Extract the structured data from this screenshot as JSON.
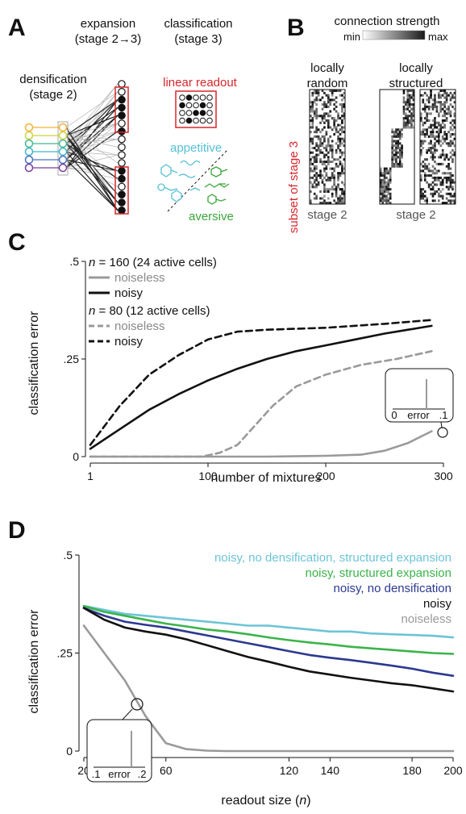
{
  "panels": {
    "a": {
      "label": "A",
      "expansion_title": "expansion",
      "expansion_sub": "(stage 2→3)",
      "classification_title": "classification",
      "classification_sub": "(stage 3)",
      "densification_title": "densification",
      "densification_sub": "(stage 2)",
      "linear_readout": "linear readout",
      "appetitive": "appetitive",
      "aversive": "aversive",
      "colors": {
        "red": "#d7262b",
        "appetitive": "#56c0d6",
        "aversive": "#3aa63a"
      }
    },
    "b": {
      "label": "B",
      "connection_strength": "connection strength",
      "min": "min",
      "max": "max",
      "locally_random_1": "locally",
      "locally_random_2": "random",
      "locally_structured_1": "locally",
      "locally_structured_2": "structured",
      "subset_label": "subset of stage 3",
      "stage2_left": "stage 2",
      "stage2_right": "stage 2"
    },
    "c": {
      "label": "C",
      "inset_error": "error",
      "inset_tick_lo": "0",
      "inset_tick_hi": ".1"
    },
    "d": {
      "label": "D",
      "inset_error": "error",
      "inset_tick_lo": ".1",
      "inset_tick_hi": ".2"
    }
  },
  "chart_data": [
    {
      "type": "line",
      "panel": "C",
      "xlabel": "number of mixtures",
      "ylabel": "classification error",
      "xlim": [
        0,
        300
      ],
      "ylim": [
        0,
        0.5
      ],
      "xticks": [
        "1",
        "100",
        "200",
        "300"
      ],
      "yticks": [
        ".5",
        ".25",
        "0"
      ],
      "legend": {
        "group1_title_var": "n",
        "group1_title_rest": " = 160 (24 active cells)",
        "group2_title_var": "n",
        "group2_title_rest": " = 80 (12 active cells)",
        "noiseless": "noiseless",
        "noisy": "noisy"
      },
      "series": [
        {
          "name": "noiseless",
          "group": "n = 160",
          "color": "#9a9a9a",
          "dash": false,
          "x": [
            0,
            50,
            100,
            150,
            200,
            230,
            250,
            270,
            290
          ],
          "y": [
            0,
            0,
            0,
            0,
            0.002,
            0.005,
            0.015,
            0.035,
            0.065
          ]
        },
        {
          "name": "noisy",
          "group": "n = 160",
          "color": "#111111",
          "dash": false,
          "x": [
            0,
            25,
            50,
            75,
            100,
            125,
            150,
            175,
            200,
            225,
            250,
            270,
            290
          ],
          "y": [
            0.02,
            0.07,
            0.12,
            0.16,
            0.195,
            0.225,
            0.25,
            0.27,
            0.285,
            0.3,
            0.315,
            0.325,
            0.335
          ]
        },
        {
          "name": "noiseless",
          "group": "n = 80",
          "color": "#9a9a9a",
          "dash": true,
          "x": [
            0,
            50,
            95,
            110,
            125,
            140,
            155,
            175,
            200,
            230,
            260,
            290
          ],
          "y": [
            0,
            0,
            0,
            0.01,
            0.03,
            0.08,
            0.13,
            0.18,
            0.21,
            0.235,
            0.25,
            0.27
          ]
        },
        {
          "name": "noisy",
          "group": "n = 80",
          "color": "#111111",
          "dash": true,
          "x": [
            0,
            25,
            50,
            75,
            100,
            125,
            150,
            200,
            250,
            290
          ],
          "y": [
            0.03,
            0.13,
            0.21,
            0.26,
            0.3,
            0.32,
            0.325,
            0.33,
            0.34,
            0.35
          ]
        }
      ]
    },
    {
      "type": "line",
      "panel": "D",
      "xlabel_pre": "readout size (",
      "xlabel_var": "n",
      "xlabel_post": ")",
      "ylabel": "classification error",
      "xlim": [
        20,
        200
      ],
      "ylim": [
        0,
        0.5
      ],
      "xticks": [
        "20",
        "60",
        "120",
        "140",
        "180",
        "200"
      ],
      "xtick_values": [
        20,
        60,
        120,
        140,
        180,
        200
      ],
      "yticks": [
        ".5",
        ".25",
        "0"
      ],
      "series": [
        {
          "name": "noisy, no densification, structured expansion",
          "color": "#6cc4d6",
          "x": [
            20,
            30,
            40,
            50,
            60,
            70,
            80,
            90,
            100,
            110,
            120,
            130,
            140,
            150,
            160,
            170,
            180,
            190,
            200
          ],
          "y": [
            0.37,
            0.36,
            0.35,
            0.345,
            0.34,
            0.335,
            0.33,
            0.325,
            0.32,
            0.32,
            0.315,
            0.31,
            0.305,
            0.305,
            0.3,
            0.298,
            0.296,
            0.294,
            0.29
          ]
        },
        {
          "name": "noisy, structured expansion",
          "color": "#3ab44a",
          "x": [
            20,
            30,
            40,
            50,
            60,
            70,
            80,
            90,
            100,
            110,
            120,
            130,
            140,
            150,
            160,
            170,
            180,
            190,
            200
          ],
          "y": [
            0.37,
            0.355,
            0.345,
            0.335,
            0.325,
            0.318,
            0.31,
            0.305,
            0.298,
            0.29,
            0.283,
            0.277,
            0.272,
            0.266,
            0.262,
            0.258,
            0.254,
            0.25,
            0.248
          ]
        },
        {
          "name": "noisy, no densification",
          "color": "#2b3990",
          "x": [
            20,
            30,
            40,
            50,
            60,
            70,
            80,
            90,
            100,
            110,
            120,
            130,
            140,
            150,
            160,
            170,
            180,
            190,
            200
          ],
          "y": [
            0.365,
            0.345,
            0.33,
            0.322,
            0.315,
            0.305,
            0.295,
            0.285,
            0.275,
            0.265,
            0.255,
            0.245,
            0.238,
            0.232,
            0.225,
            0.218,
            0.21,
            0.2,
            0.192
          ]
        },
        {
          "name": "noisy",
          "color": "#111111",
          "x": [
            20,
            30,
            40,
            50,
            60,
            70,
            80,
            90,
            100,
            110,
            120,
            130,
            140,
            150,
            160,
            170,
            180,
            190,
            200
          ],
          "y": [
            0.365,
            0.335,
            0.315,
            0.305,
            0.297,
            0.285,
            0.27,
            0.255,
            0.24,
            0.228,
            0.215,
            0.203,
            0.195,
            0.187,
            0.18,
            0.173,
            0.168,
            0.16,
            0.152
          ]
        },
        {
          "name": "noiseless",
          "color": "#9a9a9a",
          "x": [
            20,
            30,
            40,
            50,
            60,
            70,
            80,
            90,
            100,
            110,
            120,
            130,
            140,
            150,
            160,
            170,
            180,
            190,
            200
          ],
          "y": [
            0.32,
            0.25,
            0.18,
            0.09,
            0.02,
            0.005,
            0.001,
            0,
            0,
            0,
            0,
            0,
            0,
            0,
            0,
            0,
            0,
            0,
            0
          ]
        }
      ]
    }
  ]
}
